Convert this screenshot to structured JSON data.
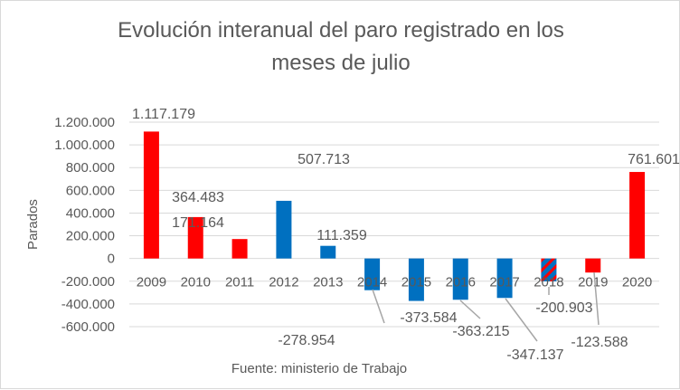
{
  "chart_data": {
    "type": "bar",
    "title_lines": [
      "Evolución interanual del paro registrado en los",
      "meses de julio"
    ],
    "ylabel": "Parados",
    "xlabel": "",
    "footnote": "Fuente: ministerio de Trabajo",
    "ylim": [
      -600000,
      1200000
    ],
    "yticks": [
      1200000,
      1000000,
      800000,
      600000,
      400000,
      200000,
      0,
      -200000,
      -400000,
      -600000
    ],
    "ytick_labels": [
      "1.200.000",
      "1.000.000",
      "800.000",
      "600.000",
      "400.000",
      "200.000",
      "0",
      "-200.000",
      "-400.000",
      "-600.000"
    ],
    "grid": true,
    "categories": [
      "2009",
      "2010",
      "2011",
      "2012",
      "2013",
      "2014",
      "2015",
      "2016",
      "2017",
      "2018",
      "2019",
      "2020"
    ],
    "values": [
      1117179,
      364483,
      171164,
      507713,
      111359,
      -278954,
      -373584,
      -363215,
      -347137,
      -200903,
      -123588,
      761601
    ],
    "data_labels": [
      "1.117.179",
      "364.483",
      "171.164",
      "507.713",
      "111.359",
      "-278.954",
      "-373.584",
      "-363.215",
      "-347.137",
      "-200.903",
      "-123.588",
      "761.601"
    ],
    "bar_fills": [
      "red",
      "red",
      "red",
      "blue",
      "blue",
      "blue",
      "blue",
      "blue",
      "blue",
      "striped",
      "red",
      "red"
    ],
    "colors": {
      "red": "#ff0000",
      "blue": "#0070c0",
      "grid": "#d9d9d9",
      "text": "#595959"
    }
  }
}
